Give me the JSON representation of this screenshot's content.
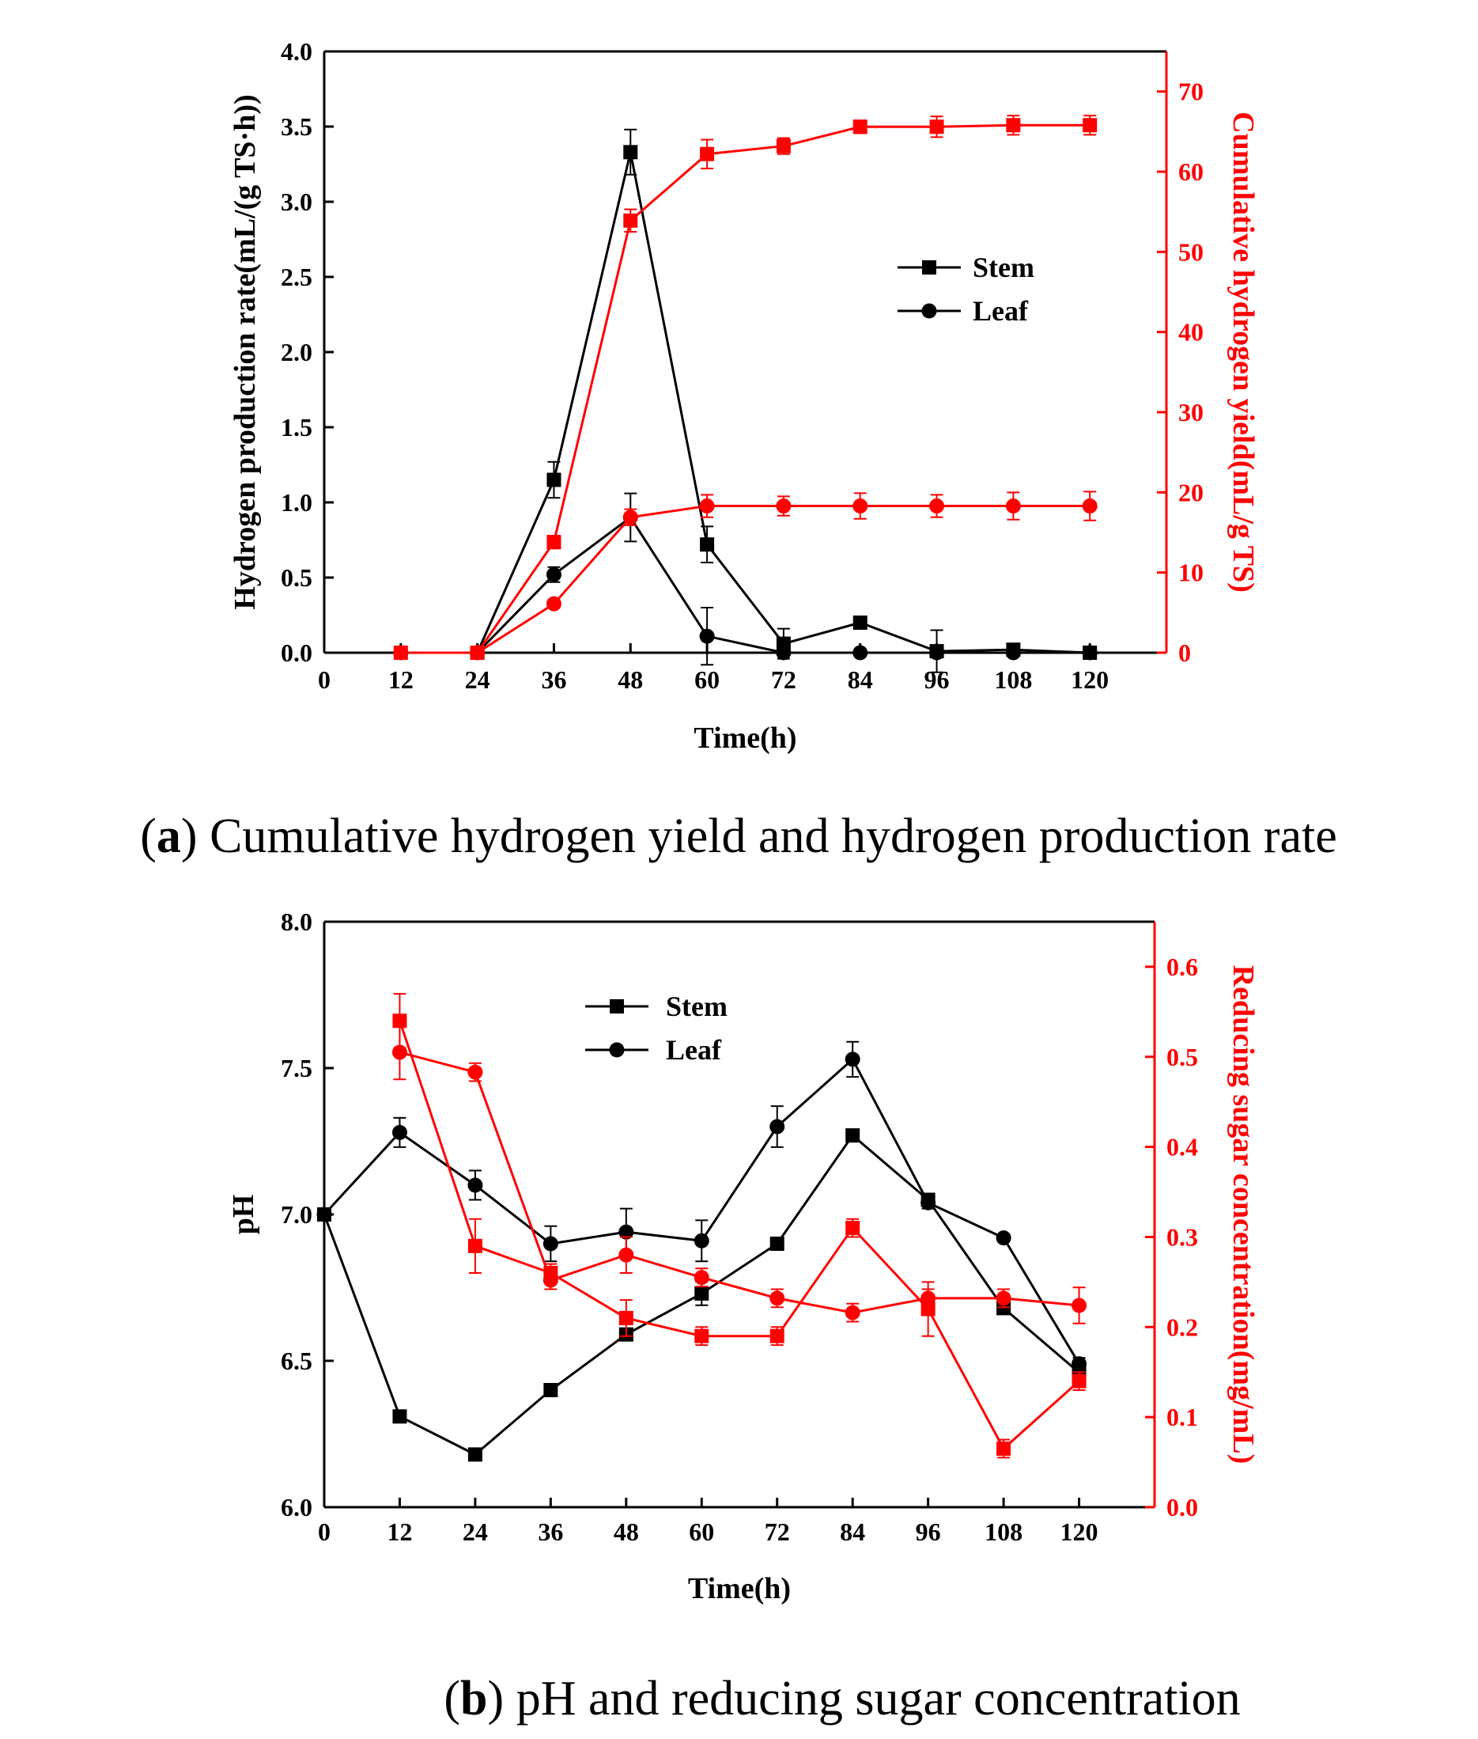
{
  "colors": {
    "left_axis": "#000000",
    "right_axis": "#ff0000"
  },
  "chart_data": [
    {
      "id": "a",
      "type": "line",
      "caption_letter": "a",
      "caption_text": "Cumulative hydrogen yield and hydrogen production rate",
      "xlabel": "Time(h)",
      "ylabel": "Hydrogen production rate(mL/(g TS·h))",
      "y2label": "Cumulative hydrogen yield(mL/g TS)",
      "xlim": [
        0,
        132
      ],
      "ylim": [
        0,
        4.0
      ],
      "y2lim": [
        0,
        75
      ],
      "xticks": [
        "0",
        "12",
        "24",
        "36",
        "48",
        "60",
        "72",
        "84",
        "96",
        "108",
        "120"
      ],
      "yticks": [
        "0.0",
        "0.5",
        "1.0",
        "1.5",
        "2.0",
        "2.5",
        "3.0",
        "3.5",
        "4.0"
      ],
      "y2ticks": [
        "0",
        "10",
        "20",
        "30",
        "40",
        "50",
        "60",
        "70"
      ],
      "legend": [
        {
          "label": "Stem",
          "marker": "square"
        },
        {
          "label": "Leaf",
          "marker": "circle"
        }
      ],
      "series": [
        {
          "name": "Stem",
          "axis": "left",
          "color": "#000000",
          "marker": "square",
          "x": [
            24,
            36,
            48,
            60,
            72,
            84,
            96,
            108,
            120
          ],
          "values": [
            0,
            1.15,
            3.33,
            0.72,
            0.06,
            0.2,
            0.01,
            0.02,
            0.0
          ],
          "errors": [
            0,
            0.12,
            0.15,
            0.12,
            0.1,
            0.03,
            0.14,
            0.02,
            0.01
          ]
        },
        {
          "name": "Leaf",
          "axis": "left",
          "color": "#000000",
          "marker": "circle",
          "x": [
            24,
            36,
            48,
            60,
            72,
            84,
            96,
            108,
            120
          ],
          "values": [
            0,
            0.52,
            0.9,
            0.11,
            0.0,
            0.0,
            0.0,
            0.0,
            0.0
          ],
          "errors": [
            0,
            0.05,
            0.16,
            0.19,
            0.02,
            0.02,
            0.02,
            0.01,
            0.01
          ]
        },
        {
          "name": "Stem cumulative",
          "axis": "right",
          "color": "#ff0000",
          "marker": "square",
          "x": [
            12,
            24,
            36,
            48,
            60,
            72,
            84,
            96,
            108,
            120
          ],
          "values": [
            0,
            0,
            13.8,
            53.9,
            62.2,
            63.2,
            65.6,
            65.6,
            65.8,
            65.8
          ],
          "errors": [
            0,
            0,
            0.8,
            1.4,
            1.8,
            1.0,
            0.8,
            1.3,
            1.2,
            1.2
          ]
        },
        {
          "name": "Leaf cumulative",
          "axis": "right",
          "color": "#ff0000",
          "marker": "circle",
          "x": [
            12,
            24,
            36,
            48,
            60,
            72,
            84,
            96,
            108,
            120
          ],
          "values": [
            0,
            0,
            6.1,
            16.9,
            18.3,
            18.3,
            18.3,
            18.3,
            18.3,
            18.3
          ],
          "errors": [
            0,
            0,
            0.5,
            1.0,
            1.4,
            1.2,
            1.6,
            1.4,
            1.7,
            1.8
          ]
        }
      ]
    },
    {
      "id": "b",
      "type": "line",
      "caption_letter": "b",
      "caption_text": "pH and reducing sugar concentration",
      "xlabel": "Time(h)",
      "ylabel": "pH",
      "y2label": "Reducing sugar concentration(mg/mL)",
      "xlim": [
        0,
        132
      ],
      "ylim": [
        6.0,
        8.0
      ],
      "y2lim": [
        0,
        0.65
      ],
      "xticks": [
        "0",
        "12",
        "24",
        "36",
        "48",
        "60",
        "72",
        "84",
        "96",
        "108",
        "120"
      ],
      "yticks": [
        "6.0",
        "6.5",
        "7.0",
        "7.5",
        "8.0"
      ],
      "y2ticks": [
        "0.0",
        "0.1",
        "0.2",
        "0.3",
        "0.4",
        "0.5",
        "0.6"
      ],
      "legend": [
        {
          "label": "Stem",
          "marker": "square"
        },
        {
          "label": "Leaf",
          "marker": "circle"
        }
      ],
      "series": [
        {
          "name": "Stem pH",
          "axis": "left",
          "color": "#000000",
          "marker": "square",
          "x": [
            0,
            12,
            24,
            36,
            48,
            60,
            72,
            84,
            96,
            108,
            120
          ],
          "values": [
            7.0,
            6.31,
            6.18,
            6.4,
            6.59,
            6.73,
            6.9,
            7.27,
            7.05,
            6.68,
            6.46
          ],
          "errors": [
            0,
            0.02,
            0.01,
            0.01,
            0.02,
            0.04,
            0.01,
            0.01,
            0.01,
            0.01,
            0.02
          ]
        },
        {
          "name": "Leaf pH",
          "axis": "left",
          "color": "#000000",
          "marker": "circle",
          "x": [
            0,
            12,
            24,
            36,
            48,
            60,
            72,
            84,
            96,
            108,
            120
          ],
          "values": [
            7.0,
            7.28,
            7.1,
            6.9,
            6.94,
            6.91,
            7.3,
            7.53,
            7.04,
            6.92,
            6.49
          ],
          "errors": [
            0,
            0.05,
            0.05,
            0.06,
            0.08,
            0.07,
            0.07,
            0.06,
            0.02,
            0.01,
            0.02
          ]
        },
        {
          "name": "Stem reducing sugar",
          "axis": "right",
          "color": "#ff0000",
          "marker": "square",
          "x": [
            12,
            24,
            36,
            48,
            60,
            72,
            84,
            96,
            108,
            120
          ],
          "values": [
            0.54,
            0.29,
            0.26,
            0.21,
            0.19,
            0.19,
            0.31,
            0.22,
            0.065,
            0.14
          ],
          "errors": [
            0.03,
            0.03,
            0.01,
            0.02,
            0.01,
            0.01,
            0.01,
            0.03,
            0.01,
            0.01
          ]
        },
        {
          "name": "Leaf reducing sugar",
          "axis": "right",
          "color": "#ff0000",
          "marker": "circle",
          "x": [
            12,
            24,
            36,
            48,
            60,
            72,
            84,
            96,
            108,
            120
          ],
          "values": [
            0.505,
            0.483,
            0.252,
            0.28,
            0.255,
            0.232,
            0.216,
            0.232,
            0.232,
            0.224
          ],
          "errors": [
            0.03,
            0.01,
            0.01,
            0.02,
            0.01,
            0.01,
            0.01,
            0.01,
            0.01,
            0.02
          ]
        }
      ]
    }
  ]
}
